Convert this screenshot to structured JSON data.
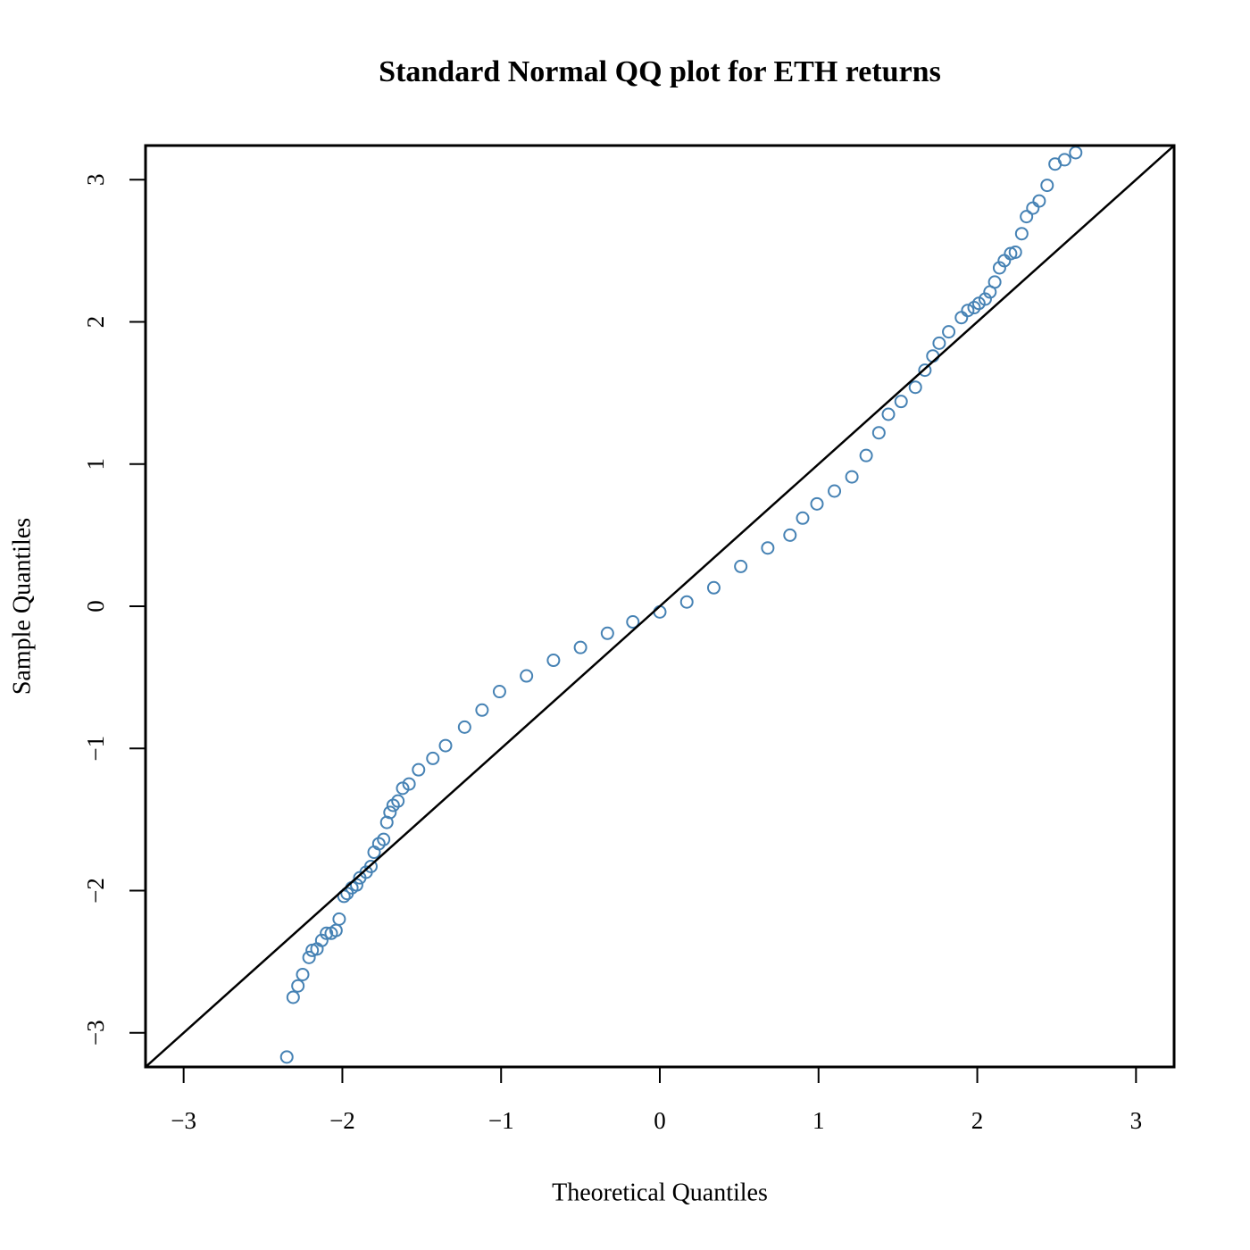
{
  "chart_data": {
    "type": "scatter",
    "title": "Standard Normal QQ plot for ETH returns",
    "xlabel": "Theoretical Quantiles",
    "ylabel": "Sample Quantiles",
    "color": "#4682b4",
    "filled": false,
    "xlim": [
      -3.24,
      3.24
    ],
    "ylim": [
      -3.24,
      3.24
    ],
    "xticks": [
      {
        "value": -3,
        "label": "−3"
      },
      {
        "value": -2,
        "label": "−2"
      },
      {
        "value": -1,
        "label": "−1"
      },
      0,
      1,
      2,
      3
    ],
    "yticks": [
      {
        "value": -3,
        "label": "−3"
      },
      {
        "value": -2,
        "label": "−2"
      },
      {
        "value": -1,
        "label": "−1"
      },
      0,
      1,
      2,
      3
    ],
    "reference_line": {
      "slope": 1,
      "intercept": 0
    },
    "x": [
      -2.35,
      -2.31,
      -2.28,
      -2.25,
      -2.21,
      -2.19,
      -2.16,
      -2.13,
      -2.1,
      -2.07,
      -2.04,
      -2.02,
      -1.99,
      -1.97,
      -1.94,
      -1.91,
      -1.89,
      -1.85,
      -1.82,
      -1.8,
      -1.77,
      -1.74,
      -1.72,
      -1.7,
      -1.68,
      -1.65,
      -1.62,
      -1.58,
      -1.52,
      -1.43,
      -1.35,
      -1.23,
      -1.12,
      -1.01,
      -0.84,
      -0.67,
      -0.5,
      -0.33,
      -0.17,
      0,
      0.17,
      0.34,
      0.51,
      0.68,
      0.82,
      0.9,
      0.99,
      1.1,
      1.21,
      1.3,
      1.38,
      1.44,
      1.52,
      1.61,
      1.67,
      1.72,
      1.76,
      1.82,
      1.9,
      1.94,
      1.98,
      2.01,
      2.05,
      2.08,
      2.11,
      2.14,
      2.17,
      2.21,
      2.24,
      2.28,
      2.31,
      2.35,
      2.39,
      2.44,
      2.49,
      2.55,
      2.62
    ],
    "values": [
      -3.17,
      -2.75,
      -2.67,
      -2.59,
      -2.47,
      -2.42,
      -2.41,
      -2.35,
      -2.3,
      -2.3,
      -2.28,
      -2.2,
      -2.04,
      -2.02,
      -1.98,
      -1.96,
      -1.91,
      -1.87,
      -1.83,
      -1.73,
      -1.67,
      -1.64,
      -1.52,
      -1.45,
      -1.4,
      -1.37,
      -1.28,
      -1.25,
      -1.15,
      -1.07,
      -0.98,
      -0.85,
      -0.73,
      -0.6,
      -0.49,
      -0.38,
      -0.29,
      -0.19,
      -0.11,
      -0.04,
      0.03,
      0.13,
      0.28,
      0.41,
      0.5,
      0.62,
      0.72,
      0.81,
      0.91,
      1.06,
      1.22,
      1.35,
      1.44,
      1.54,
      1.66,
      1.76,
      1.85,
      1.93,
      2.03,
      2.08,
      2.1,
      2.13,
      2.16,
      2.21,
      2.28,
      2.38,
      2.43,
      2.48,
      2.49,
      2.62,
      2.74,
      2.8,
      2.85,
      2.96,
      3.11,
      3.14,
      3.19
    ]
  }
}
